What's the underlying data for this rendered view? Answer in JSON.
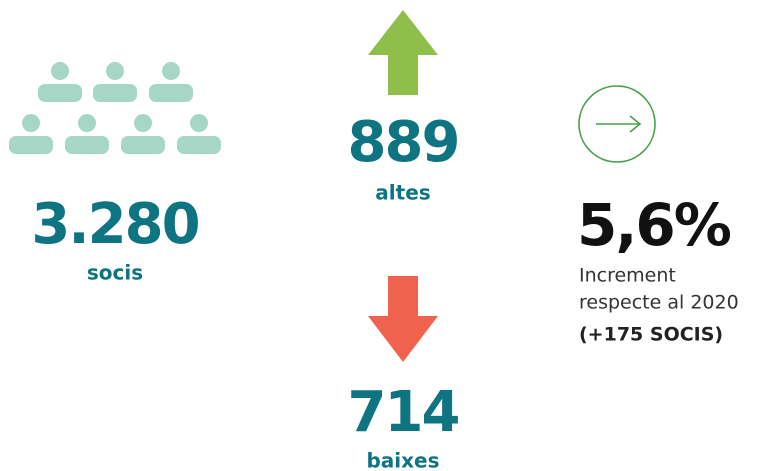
{
  "members": {
    "value": "3.280",
    "label": "socis"
  },
  "new": {
    "value": "889",
    "label": "altes"
  },
  "left": {
    "value": "714",
    "label": "baixes"
  },
  "growth": {
    "value": "5,6%",
    "line1": "Increment",
    "line2": "respecte al 2020",
    "detail": "(+175 SOCIS)"
  }
}
